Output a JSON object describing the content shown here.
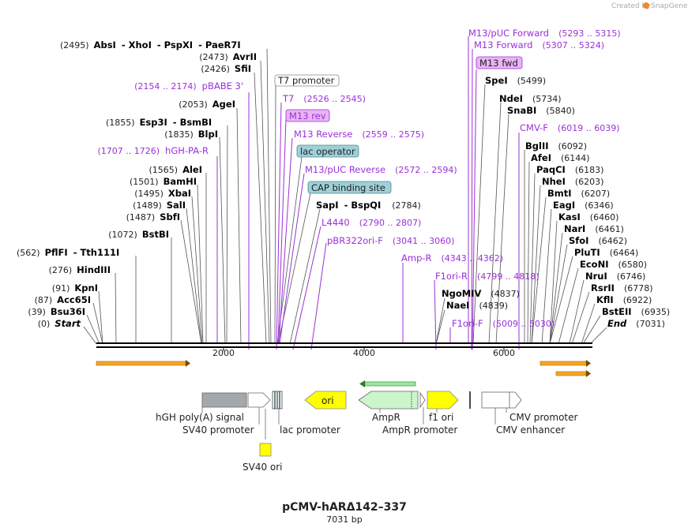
{
  "header": {
    "created_by": "Created by",
    "brand": "SnapGene"
  },
  "plasmid": {
    "name": "pCMV-hARΔ142–337",
    "length_label": "7031 bp"
  },
  "ruler": {
    "ticks": [
      "2000",
      "4000",
      "6000"
    ]
  },
  "sites_left": [
    {
      "pos": "(2495)",
      "name": "AbsI",
      "extra": [
        "- XhoI",
        "- PspXI",
        "- PaeR7I"
      ]
    },
    {
      "pos": "(2473)",
      "name": "AvrII"
    },
    {
      "pos": "(2426)",
      "name": "SfiI"
    },
    {
      "pos": "(2053)",
      "name": "AgeI"
    },
    {
      "pos": "(1855)",
      "name": "Esp3I",
      "extra": [
        "- BsmBI"
      ]
    },
    {
      "pos": "(1835)",
      "name": "BlpI"
    },
    {
      "pos": "(1565)",
      "name": "AleI"
    },
    {
      "pos": "(1501)",
      "name": "BamHI"
    },
    {
      "pos": "(1495)",
      "name": "XbaI"
    },
    {
      "pos": "(1489)",
      "name": "SalI"
    },
    {
      "pos": "(1487)",
      "name": "SbfI"
    },
    {
      "pos": "(1072)",
      "name": "BstBI"
    },
    {
      "pos": "(562)",
      "name": "PflFI",
      "extra": [
        "- Tth111I"
      ]
    },
    {
      "pos": "(276)",
      "name": "HindIII"
    },
    {
      "pos": "(91)",
      "name": "KpnI"
    },
    {
      "pos": "(87)",
      "name": "Acc65I"
    },
    {
      "pos": "(39)",
      "name": "Bsu36I"
    },
    {
      "pos": "(0)",
      "name": "Start"
    }
  ],
  "primers_left": [
    {
      "range": "(2154 .. 2174)",
      "name": "pBABE 3'"
    },
    {
      "range": "(1707 .. 1726)",
      "name": "hGH-PA-R"
    }
  ],
  "middle": {
    "t7_promoter": "T7 promoter",
    "t7": {
      "name": "T7",
      "range": "(2526 .. 2545)"
    },
    "m13_rev": "M13 rev",
    "m13_reverse": {
      "name": "M13 Reverse",
      "range": "(2559 .. 2575)"
    },
    "lac_operator": "lac operator",
    "m13puc_reverse": {
      "name": "M13/pUC Reverse",
      "range": "(2572 .. 2594)"
    },
    "cap_site": "CAP binding site",
    "sapi": {
      "name": "SapI",
      "extra": "- BspQI",
      "pos": "(2784)"
    },
    "l4440": {
      "name": "L4440",
      "range": "(2790 .. 2807)"
    },
    "pbr322": {
      "name": "pBR322ori-F",
      "range": "(3041 .. 3060)"
    },
    "ampr_primer": {
      "name": "Amp-R",
      "range": "(4343 .. 4362)"
    },
    "f1ori_r": {
      "name": "F1ori-R",
      "range": "(4799 .. 4818)"
    },
    "ngomiv": {
      "name": "NgoMIV",
      "pos": "(4837)"
    },
    "naei": {
      "name": "NaeI",
      "pos": "(4839)"
    },
    "f1ori_f": {
      "name": "F1ori-F",
      "range": "(5009 .. 5030)"
    }
  },
  "top_right": {
    "m13puc_forward": {
      "name": "M13/pUC Forward",
      "range": "(5293 .. 5315)"
    },
    "m13_forward": {
      "name": "M13 Forward",
      "range": "(5307 .. 5324)"
    },
    "m13_fwd": "M13 fwd"
  },
  "sites_right": [
    {
      "name": "SpeI",
      "pos": "(5499)"
    },
    {
      "name": "NdeI",
      "pos": "(5734)"
    },
    {
      "name": "SnaBI",
      "pos": "(5840)"
    },
    {
      "name": "CMV-F",
      "pos": "(6019 .. 6039)",
      "primer": true
    },
    {
      "name": "BglII",
      "pos": "(6092)"
    },
    {
      "name": "AfeI",
      "pos": "(6144)"
    },
    {
      "name": "PaqCI",
      "pos": "(6183)"
    },
    {
      "name": "NheI",
      "pos": "(6203)"
    },
    {
      "name": "BmtI",
      "pos": "(6207)"
    },
    {
      "name": "EagI",
      "pos": "(6346)"
    },
    {
      "name": "KasI",
      "pos": "(6460)"
    },
    {
      "name": "NarI",
      "pos": "(6461)"
    },
    {
      "name": "SfoI",
      "pos": "(6462)"
    },
    {
      "name": "PluTI",
      "pos": "(6464)"
    },
    {
      "name": "EcoNI",
      "pos": "(6580)"
    },
    {
      "name": "NruI",
      "pos": "(6746)"
    },
    {
      "name": "RsrII",
      "pos": "(6778)"
    },
    {
      "name": "KflI",
      "pos": "(6922)"
    },
    {
      "name": "BstEII",
      "pos": "(6935)"
    },
    {
      "name": "End",
      "pos": "(7031)"
    }
  ],
  "features": {
    "hgh_polya": "hGH poly(A) signal",
    "sv40_promoter": "SV40 promoter",
    "lac_promoter": "lac promoter",
    "sv40_ori": "SV40 ori",
    "ori": "ori",
    "ampr": "AmpR",
    "ampr_promoter": "AmpR promoter",
    "f1_ori": "f1 ori",
    "cmv_promoter": "CMV promoter",
    "cmv_enhancer": "CMV enhancer"
  },
  "colors": {
    "primer": "#9b30d9",
    "m13_box": "#e8b4f5",
    "lac_box": "#9fd0d8",
    "ori_yellow": "#ffff00",
    "ampr_green": "#ccf5cc",
    "orf_orange": "#f5a623",
    "hgh_gray": "#a4a8ab"
  }
}
